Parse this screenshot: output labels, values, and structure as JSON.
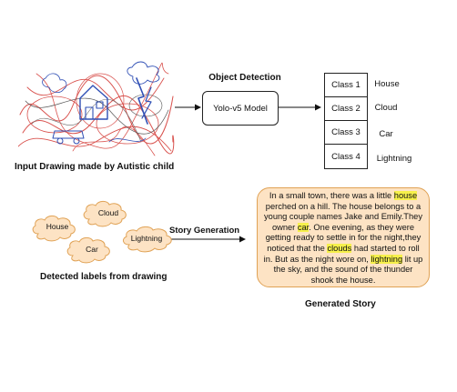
{
  "drawing": {
    "caption": "Input Drawing made by Autistic child"
  },
  "detection": {
    "title": "Object Detection",
    "model_label": "Yolo-v5 Model"
  },
  "classes": [
    {
      "id": "Class 1",
      "name": "House"
    },
    {
      "id": "Class 2",
      "name": "Cloud"
    },
    {
      "id": "Class 3",
      "name": "Car"
    },
    {
      "id": "Class 4",
      "name": "Lightning"
    }
  ],
  "labels": {
    "items": [
      "House",
      "Cloud",
      "Car",
      "Lightning"
    ],
    "caption": "Detected labels from drawing"
  },
  "generation": {
    "label": "Story Generation"
  },
  "story": {
    "segments": [
      {
        "text": "In a small town, there was a little ",
        "highlight": false
      },
      {
        "text": "house",
        "highlight": true
      },
      {
        "text": " perched on a hill. The house belongs to a young couple names Jake and Emily.They owner ",
        "highlight": false
      },
      {
        "text": "car",
        "highlight": true
      },
      {
        "text": ". One evening, as they were getting ready to settle in for the night,they noticed that the ",
        "highlight": false
      },
      {
        "text": "clouds",
        "highlight": true
      },
      {
        "text": " had started to roll in. But as the night wore on, ",
        "highlight": false
      },
      {
        "text": "lightning",
        "highlight": true
      },
      {
        "text": " lit up the sky, and the sound of the thunder shook the house.",
        "highlight": false
      }
    ],
    "caption": "Generated Story"
  },
  "colors": {
    "story_fill": "#fde3c4",
    "story_border": "#e0a255",
    "highlight": "#f6f04b",
    "cloud_fill": "#fde3c4",
    "scribble_red": "#d9534f",
    "scribble_blue": "#2f4fb5"
  }
}
